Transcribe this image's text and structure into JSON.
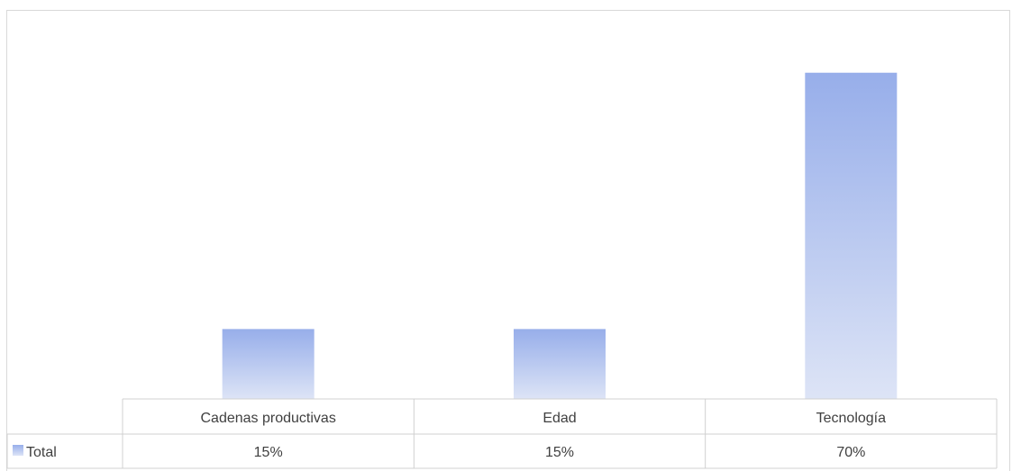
{
  "chart_data": {
    "type": "bar",
    "categories": [
      "Cadenas productivas",
      "Edad",
      "Tecnología"
    ],
    "series": [
      {
        "name": "Total",
        "values": [
          0.15,
          0.15,
          0.7
        ]
      }
    ],
    "value_labels": [
      "15%",
      "15%",
      "70%"
    ],
    "ylim": [
      0,
      0.8
    ],
    "grid": false,
    "legend": "bottom-left (data table)",
    "bar_color_top": "#97aeea",
    "bar_color_bottom": "#dde4f6"
  }
}
